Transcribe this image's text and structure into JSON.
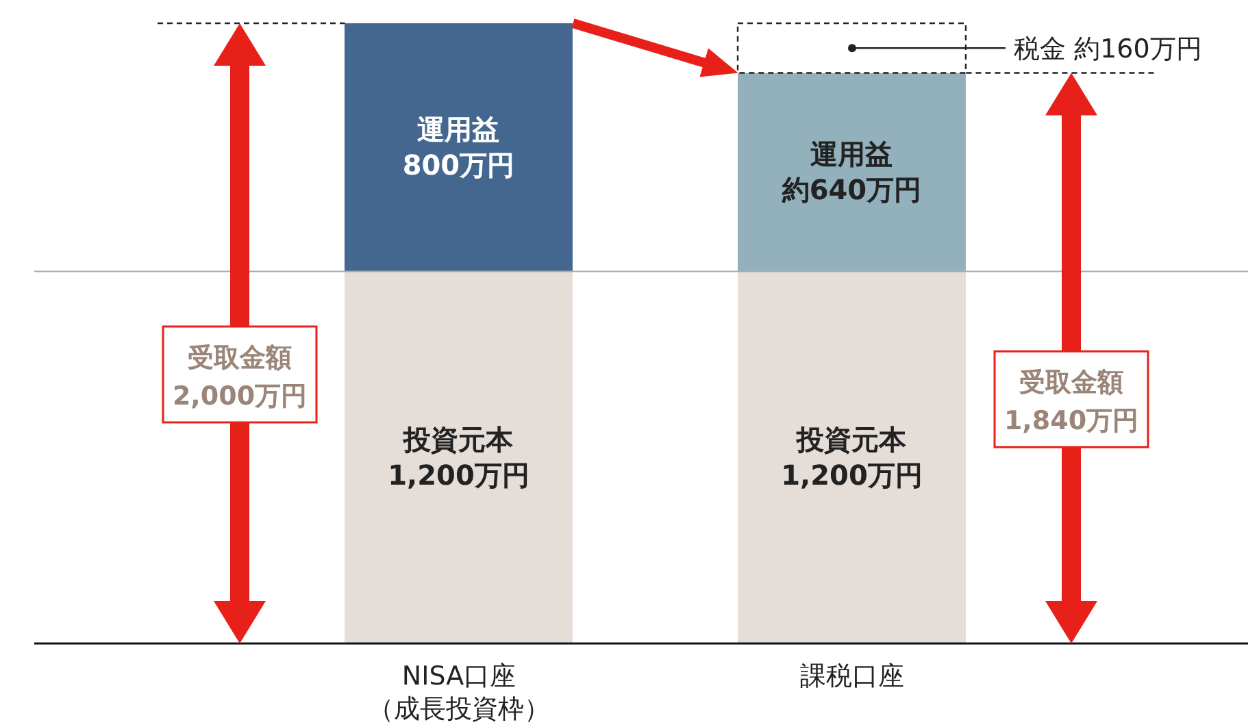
{
  "chart_data": {
    "type": "bar",
    "stacked": true,
    "categories": [
      "NISA口座（成長投資枠）",
      "課税口座"
    ],
    "series": [
      {
        "name": "投資元本",
        "color": "#e4ddd8",
        "values": [
          1200,
          1200
        ],
        "value_labels": [
          "1,200万円",
          "1,200万円"
        ]
      },
      {
        "name": "運用益",
        "colors": [
          "#44678f",
          "#93b1bc"
        ],
        "values": [
          800,
          640
        ],
        "value_labels": [
          "800万円",
          "約640万円"
        ]
      },
      {
        "color": "#ffffff",
        "line_style": "dashed",
        "values": [
          null,
          160
        ]
      }
    ],
    "ref_lines": [
      {
        "axis": "y",
        "value": 1200,
        "color": "#aaaaaa"
      }
    ],
    "annotations": [
      "受取金額\n2,000万円",
      "受取金額\n1,840万円",
      {
        "text": "税金 約160万円",
        "x": "課税口座",
        "y": 1920
      }
    ],
    "grid": false,
    "legend": false
  }
}
